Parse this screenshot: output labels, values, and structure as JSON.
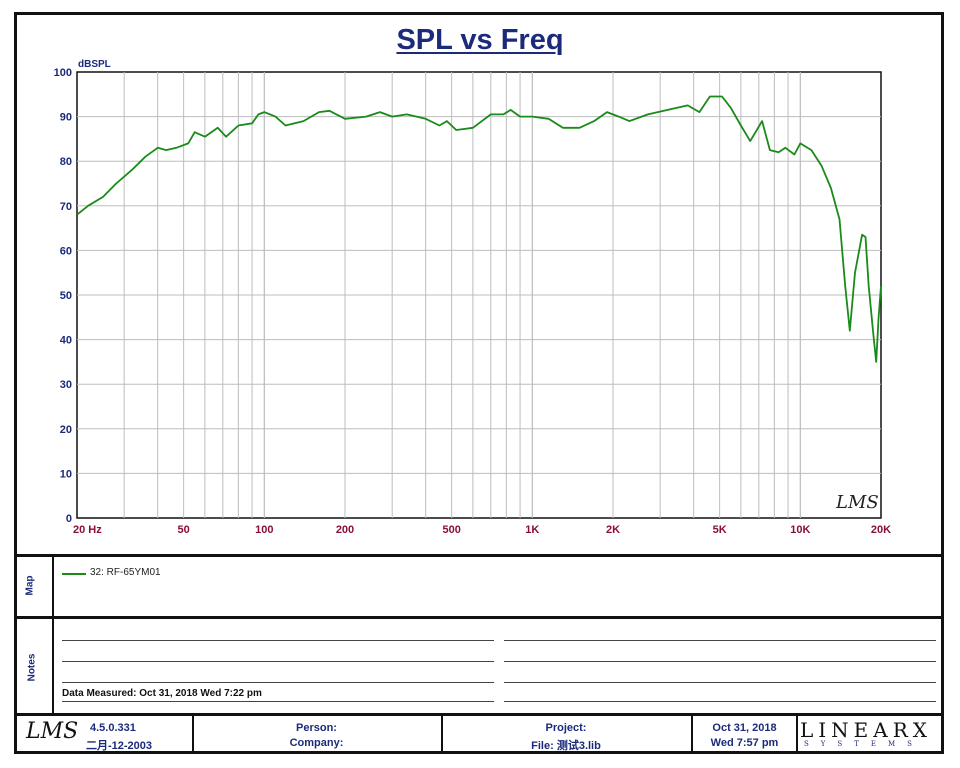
{
  "chart_data": {
    "type": "line",
    "title": "SPL vs Freq",
    "ylabel": "dBSPL",
    "xlabel": "",
    "x_scale": "log",
    "xlim": [
      20,
      20000
    ],
    "ylim": [
      0,
      100
    ],
    "y_ticks": [
      0,
      10,
      20,
      30,
      40,
      50,
      60,
      70,
      80,
      90,
      100
    ],
    "x_ticks": [
      {
        "value": 20,
        "label": "20  Hz"
      },
      {
        "value": 50,
        "label": "50"
      },
      {
        "value": 100,
        "label": "100"
      },
      {
        "value": 200,
        "label": "200"
      },
      {
        "value": 500,
        "label": "500"
      },
      {
        "value": 1000,
        "label": "1K"
      },
      {
        "value": 2000,
        "label": "2K"
      },
      {
        "value": 5000,
        "label": "5K"
      },
      {
        "value": 10000,
        "label": "10K"
      },
      {
        "value": 20000,
        "label": "20K"
      }
    ],
    "grid": true,
    "series": [
      {
        "name": "32: RF-65YM01",
        "color": "#1a8a1a",
        "points": [
          [
            20,
            68
          ],
          [
            22,
            70
          ],
          [
            25,
            72
          ],
          [
            28,
            75
          ],
          [
            32,
            78
          ],
          [
            36,
            81
          ],
          [
            40,
            83
          ],
          [
            43,
            82.5
          ],
          [
            47,
            83
          ],
          [
            52,
            84
          ],
          [
            55,
            86.5
          ],
          [
            60,
            85.5
          ],
          [
            67,
            87.5
          ],
          [
            72,
            85.5
          ],
          [
            80,
            88
          ],
          [
            90,
            88.5
          ],
          [
            95,
            90.5
          ],
          [
            100,
            91
          ],
          [
            110,
            90
          ],
          [
            120,
            88
          ],
          [
            140,
            89
          ],
          [
            160,
            91
          ],
          [
            175,
            91.3
          ],
          [
            200,
            89.5
          ],
          [
            240,
            90
          ],
          [
            270,
            91
          ],
          [
            300,
            90
          ],
          [
            340,
            90.5
          ],
          [
            400,
            89.5
          ],
          [
            450,
            88
          ],
          [
            480,
            89
          ],
          [
            520,
            87
          ],
          [
            600,
            87.5
          ],
          [
            700,
            90.5
          ],
          [
            780,
            90.5
          ],
          [
            830,
            91.5
          ],
          [
            900,
            90
          ],
          [
            1000,
            90
          ],
          [
            1150,
            89.5
          ],
          [
            1300,
            87.5
          ],
          [
            1500,
            87.5
          ],
          [
            1700,
            89
          ],
          [
            1900,
            91
          ],
          [
            2100,
            90
          ],
          [
            2300,
            89
          ],
          [
            2700,
            90.5
          ],
          [
            3200,
            91.5
          ],
          [
            3800,
            92.5
          ],
          [
            4200,
            91
          ],
          [
            4600,
            94.5
          ],
          [
            5100,
            94.5
          ],
          [
            5500,
            92
          ],
          [
            6000,
            88
          ],
          [
            6500,
            84.5
          ],
          [
            7200,
            89
          ],
          [
            7700,
            82.5
          ],
          [
            8300,
            82
          ],
          [
            8800,
            83
          ],
          [
            9500,
            81.5
          ],
          [
            10000,
            84
          ],
          [
            11000,
            82.5
          ],
          [
            12000,
            79
          ],
          [
            13000,
            74
          ],
          [
            14000,
            67
          ],
          [
            14700,
            52
          ],
          [
            15300,
            42
          ],
          [
            16000,
            55
          ],
          [
            17000,
            63.5
          ],
          [
            17500,
            63
          ],
          [
            18000,
            52
          ],
          [
            18700,
            41.5
          ],
          [
            19200,
            35
          ],
          [
            19600,
            45
          ],
          [
            20000,
            52
          ]
        ]
      }
    ]
  },
  "map": {
    "label": "Map"
  },
  "notes": {
    "label": "Notes",
    "data_measured": "Data Measured: Oct 31, 2018  Wed  7:22 pm"
  },
  "footer": {
    "logo": "LMS",
    "version": "4.5.0.331",
    "build_date": "二月-12-2003",
    "person_label": "Person:",
    "company_label": "Company:",
    "project_label": "Project:",
    "file_label": "File: 测试3.lib",
    "date": "Oct 31, 2018",
    "time": "Wed  7:57 pm",
    "brand": "LINEARX",
    "brand_sub": "SYSTEMS"
  },
  "colors": {
    "axis_text": "#1b2a7a",
    "x_tick_text": "#8a0f35",
    "curve": "#1a8a1a",
    "grid": "#bdbdbd"
  }
}
